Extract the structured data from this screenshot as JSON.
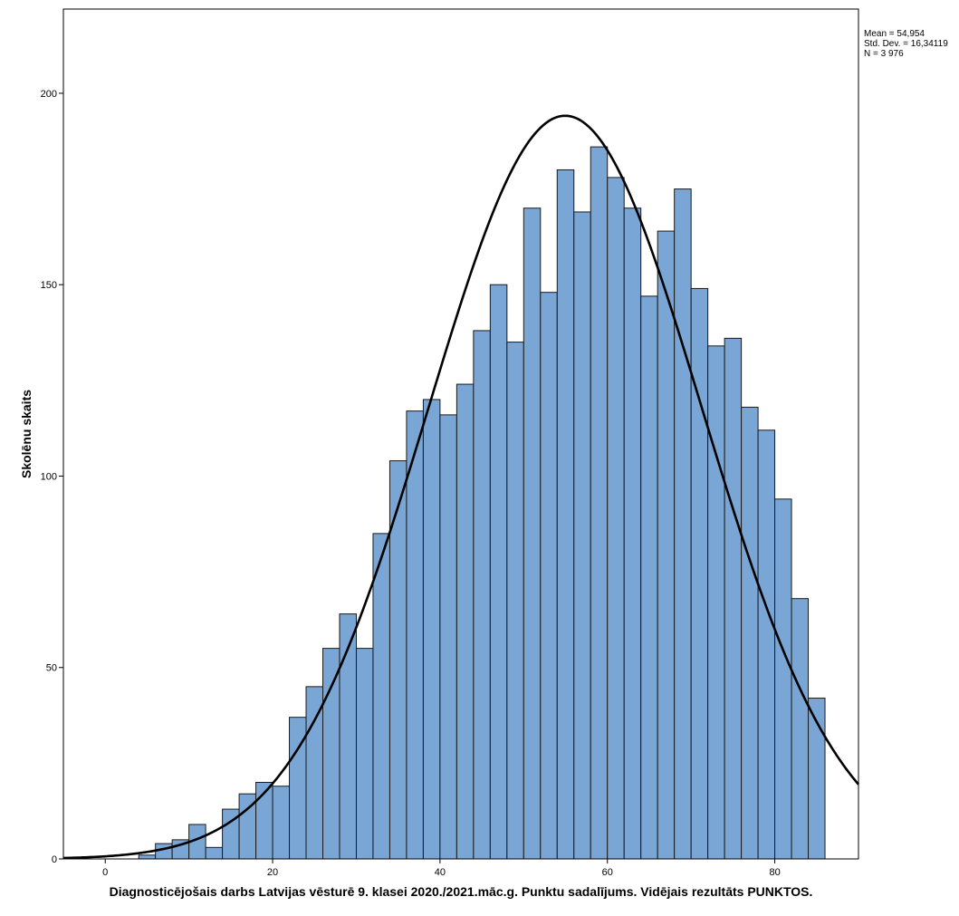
{
  "chart_data": {
    "type": "bar",
    "subtype": "histogram",
    "xlabel": "Diagnosticējošais darbs Latvijas vēsturē 9. klasei 2020./2021.māc.g. Punktu sadalījums. Vidējais rezultāts PUNKTOS.",
    "ylabel": "Skolēnu skaits",
    "xlim": [
      -5,
      90
    ],
    "ylim": [
      0,
      222
    ],
    "x_ticks": [
      "0",
      "20",
      "40",
      "60",
      "80"
    ],
    "y_ticks": [
      "0",
      "50",
      "100",
      "150",
      "200"
    ],
    "bin_width": 2,
    "bin_starts": [
      4,
      6,
      8,
      10,
      12,
      14,
      16,
      18,
      20,
      22,
      24,
      26,
      28,
      30,
      32,
      34,
      36,
      38,
      40,
      42,
      44,
      46,
      48,
      50,
      52,
      54,
      56,
      58,
      60,
      62,
      64,
      66,
      68,
      70,
      72,
      74,
      76,
      78,
      80,
      82,
      84
    ],
    "values": [
      1,
      4,
      5,
      9,
      3,
      13,
      17,
      20,
      19,
      37,
      45,
      55,
      64,
      55,
      85,
      104,
      117,
      120,
      116,
      124,
      138,
      150,
      135,
      170,
      148,
      180,
      169,
      186,
      178,
      170,
      147,
      164,
      175,
      149,
      134,
      136,
      118,
      112,
      94,
      68,
      42
    ],
    "normal_curve": {
      "mean": 54.954,
      "std_dev": 16.34119,
      "n": 3976
    },
    "stats_box": [
      "Mean = 54,954",
      "Std. Dev. = 16,34119",
      "N = 3 976"
    ],
    "colors": {
      "bar_fill": "#7aa6d6",
      "bar_stroke": "#1a1a1a",
      "curve": "#000000",
      "frame": "#000000"
    },
    "grid": false,
    "legend": "none"
  }
}
